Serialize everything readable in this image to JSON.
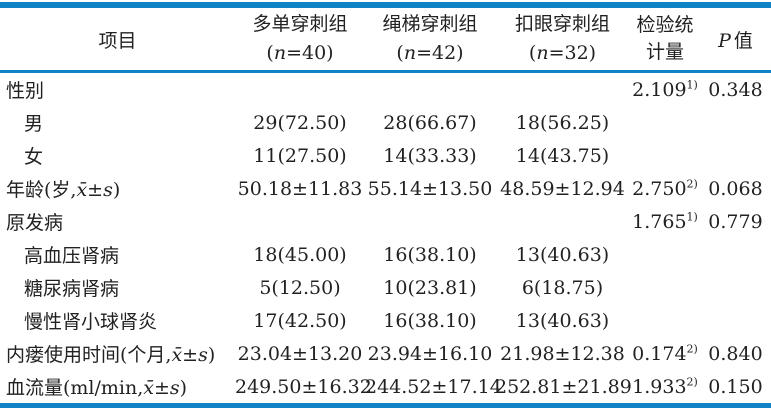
{
  "palette": {
    "rule_blue": "#1082c6",
    "text": "#222222"
  },
  "header": {
    "item_label": "项目",
    "groups": [
      {
        "name": "多单穿刺组",
        "n_pre": "(",
        "n_it": "n",
        "n_post": "=40)"
      },
      {
        "name": "绳梯穿刺组",
        "n_pre": "(",
        "n_it": "n",
        "n_post": "=42)"
      },
      {
        "name": "扣眼穿刺组",
        "n_pre": "(",
        "n_it": "n",
        "n_post": "=32)"
      }
    ],
    "stat_label": "检验统计量",
    "p_it": "P",
    "p_post": "值"
  },
  "rows": [
    {
      "indent": false,
      "label_pre": "性别",
      "label_math": "",
      "label_post": "",
      "g1": "",
      "g2": "",
      "g3": "",
      "stat": "2.109",
      "stat_sup": "1)",
      "p": "0.348"
    },
    {
      "indent": true,
      "label_pre": "男",
      "label_math": "",
      "label_post": "",
      "g1": "29(72.50)",
      "g2": "28(66.67)",
      "g3": "18(56.25)",
      "stat": "",
      "stat_sup": "",
      "p": ""
    },
    {
      "indent": true,
      "label_pre": "女",
      "label_math": "",
      "label_post": "",
      "g1": "11(27.50)",
      "g2": "14(33.33)",
      "g3": "14(43.75)",
      "stat": "",
      "stat_sup": "",
      "p": ""
    },
    {
      "indent": false,
      "label_pre": "年龄(岁,",
      "label_math": "x̄±s",
      "label_post": ")",
      "g1": "50.18±11.83",
      "g2": "55.14±13.50",
      "g3": "48.59±12.94",
      "stat": "2.750",
      "stat_sup": "2)",
      "p": "0.068"
    },
    {
      "indent": false,
      "label_pre": "原发病",
      "label_math": "",
      "label_post": "",
      "g1": "",
      "g2": "",
      "g3": "",
      "stat": "1.765",
      "stat_sup": "1)",
      "p": "0.779"
    },
    {
      "indent": true,
      "label_pre": "高血压肾病",
      "label_math": "",
      "label_post": "",
      "g1": "18(45.00)",
      "g2": "16(38.10)",
      "g3": "13(40.63)",
      "stat": "",
      "stat_sup": "",
      "p": ""
    },
    {
      "indent": true,
      "label_pre": "糖尿病肾病",
      "label_math": "",
      "label_post": "",
      "g1": "5(12.50)",
      "g2": "10(23.81)",
      "g3": "6(18.75)",
      "stat": "",
      "stat_sup": "",
      "p": ""
    },
    {
      "indent": true,
      "label_pre": "慢性肾小球肾炎",
      "label_math": "",
      "label_post": "",
      "g1": "17(42.50)",
      "g2": "16(38.10)",
      "g3": "13(40.63)",
      "stat": "",
      "stat_sup": "",
      "p": ""
    },
    {
      "indent": false,
      "label_pre": "内瘘使用时间(个月,",
      "label_math": "x̄±s",
      "label_post": ")",
      "g1": "23.04±13.20",
      "g2": "23.94±16.10",
      "g3": "21.98±12.38",
      "stat": "0.174",
      "stat_sup": "2)",
      "p": "0.840"
    },
    {
      "indent": false,
      "label_pre": "血流量(ml/min,",
      "label_math": "x̄±s",
      "label_post": ")",
      "g1": "249.50±16.32",
      "g2": "244.52±17.14",
      "g3": "252.81±21.89",
      "stat": "1.933",
      "stat_sup": "2)",
      "p": "0.150"
    }
  ]
}
